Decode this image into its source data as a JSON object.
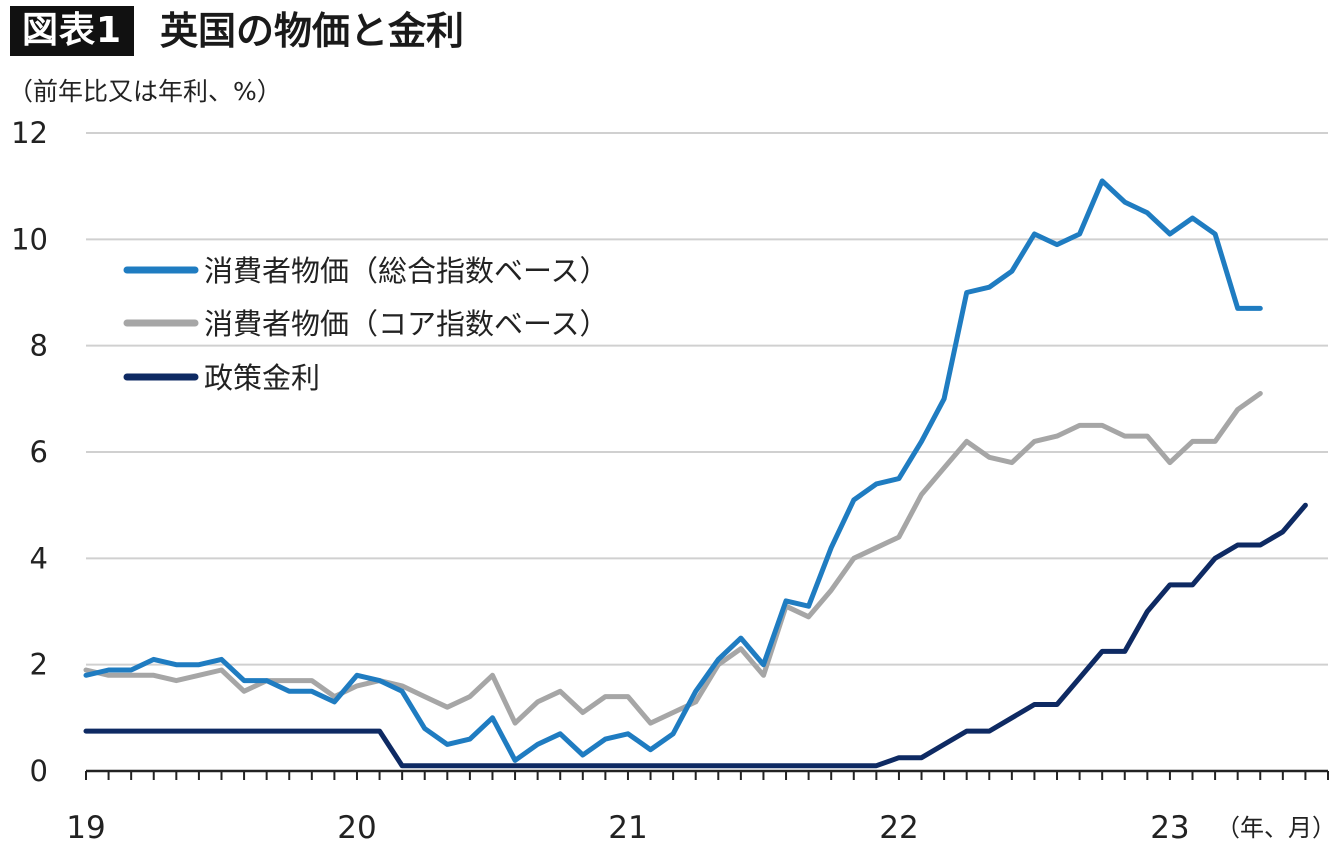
{
  "header": {
    "badge": "図表1",
    "title": "英国の物価と金利"
  },
  "colors": {
    "cpi_headline": "#1F7CC1",
    "cpi_core": "#A6A6A6",
    "policy_rate": "#0E2A63",
    "grid": "#D0D0D0",
    "axis": "#222222"
  },
  "chart_data": {
    "type": "line",
    "title": "英国の物価と金利",
    "ylabel": "（前年比又は年利、%）",
    "xlabel": "（年、月）",
    "ylim": [
      0,
      12
    ],
    "yticks": [
      0,
      2,
      4,
      6,
      8,
      10,
      12
    ],
    "xticks": [
      {
        "label": "19",
        "index": 0
      },
      {
        "label": "20",
        "index": 12
      },
      {
        "label": "21",
        "index": 24
      },
      {
        "label": "22",
        "index": 36
      },
      {
        "label": "23",
        "index": 48
      }
    ],
    "x_start": "2019-01",
    "x_frequency": "monthly",
    "grid": true,
    "legend_position": "top-left",
    "series": [
      {
        "name": "消費者物価（総合指数ベース）",
        "color": "#1F7CC1",
        "values": [
          1.8,
          1.9,
          1.9,
          2.1,
          2.0,
          2.0,
          2.1,
          1.7,
          1.7,
          1.5,
          1.5,
          1.3,
          1.8,
          1.7,
          1.5,
          0.8,
          0.5,
          0.6,
          1.0,
          0.2,
          0.5,
          0.7,
          0.3,
          0.6,
          0.7,
          0.4,
          0.7,
          1.5,
          2.1,
          2.5,
          2.0,
          3.2,
          3.1,
          4.2,
          5.1,
          5.4,
          5.5,
          6.2,
          7.0,
          9.0,
          9.1,
          9.4,
          10.1,
          9.9,
          10.1,
          11.1,
          10.7,
          10.5,
          10.1,
          10.4,
          10.1,
          8.7,
          8.7
        ]
      },
      {
        "name": "消費者物価（コア指数ベース）",
        "color": "#A6A6A6",
        "values": [
          1.9,
          1.8,
          1.8,
          1.8,
          1.7,
          1.8,
          1.9,
          1.5,
          1.7,
          1.7,
          1.7,
          1.4,
          1.6,
          1.7,
          1.6,
          1.4,
          1.2,
          1.4,
          1.8,
          0.9,
          1.3,
          1.5,
          1.1,
          1.4,
          1.4,
          0.9,
          1.1,
          1.3,
          2.0,
          2.3,
          1.8,
          3.1,
          2.9,
          3.4,
          4.0,
          4.2,
          4.4,
          5.2,
          5.7,
          6.2,
          5.9,
          5.8,
          6.2,
          6.3,
          6.5,
          6.5,
          6.3,
          6.3,
          5.8,
          6.2,
          6.2,
          6.8,
          7.1
        ]
      },
      {
        "name": "政策金利",
        "color": "#0E2A63",
        "values": [
          0.75,
          0.75,
          0.75,
          0.75,
          0.75,
          0.75,
          0.75,
          0.75,
          0.75,
          0.75,
          0.75,
          0.75,
          0.75,
          0.75,
          0.1,
          0.1,
          0.1,
          0.1,
          0.1,
          0.1,
          0.1,
          0.1,
          0.1,
          0.1,
          0.1,
          0.1,
          0.1,
          0.1,
          0.1,
          0.1,
          0.1,
          0.1,
          0.1,
          0.1,
          0.1,
          0.1,
          0.25,
          0.25,
          0.5,
          0.75,
          0.75,
          1.0,
          1.25,
          1.25,
          1.75,
          2.25,
          2.25,
          3.0,
          3.5,
          3.5,
          4.0,
          4.25,
          4.25,
          4.5,
          5.0
        ]
      }
    ]
  }
}
